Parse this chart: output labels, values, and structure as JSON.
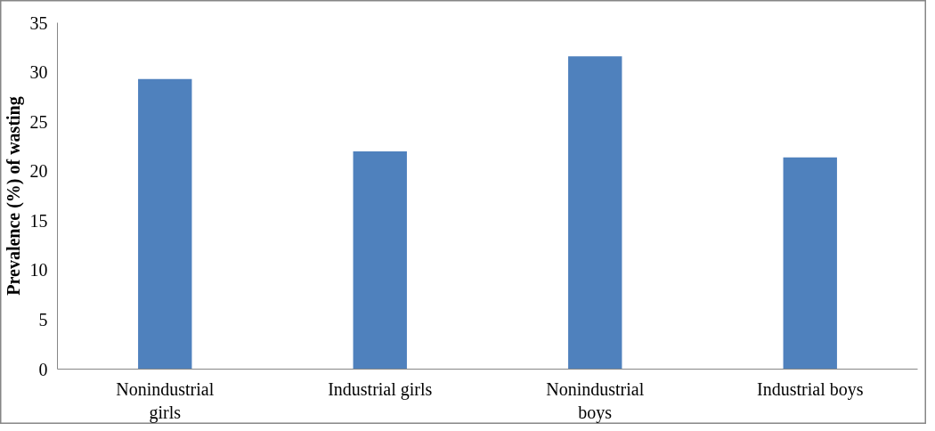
{
  "chart_data": {
    "type": "bar",
    "ylabel": "Prevalence (%) of wasting",
    "categories": [
      "Nonindustrial girls",
      "Industrial girls",
      "Nonindustrial boys",
      "Industrial boys"
    ],
    "values": [
      29.3,
      22.0,
      31.6,
      21.4
    ],
    "color": "#4f81bd",
    "ylim": [
      0,
      35
    ],
    "yticks": [
      0,
      5,
      10,
      15,
      20,
      25,
      30,
      35
    ],
    "grid": false
  }
}
